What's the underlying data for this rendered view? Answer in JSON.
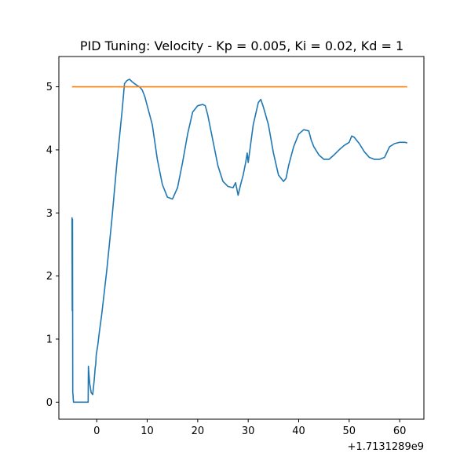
{
  "chart_data": {
    "type": "line",
    "title": "PID Tuning: Velocity - Kp = 0.005, Ki = 0.02, Kd = 1",
    "xlabel": "",
    "ylabel": "",
    "x_offset_label": "+1.7131289e9",
    "xlim": [
      -7.5,
      64.8
    ],
    "ylim": [
      -0.27,
      5.48
    ],
    "xticks": [
      0,
      10,
      20,
      30,
      40,
      50,
      60
    ],
    "yticks": [
      0,
      1,
      2,
      3,
      4,
      5
    ],
    "grid": false,
    "legend": "none",
    "series": [
      {
        "color": "#1f77b4",
        "x": [
          -4.9,
          -4.85,
          -4.8,
          -4.75,
          -4.7,
          -4.65,
          -4.6,
          -4.5,
          -4.2,
          -3.5,
          -2.5,
          -1.7,
          -1.65,
          -1.6,
          -1.4,
          -1.1,
          -0.8,
          -0.5,
          -0.3,
          -0.2,
          -0.1,
          0.0,
          0.2,
          0.5,
          1.0,
          2.0,
          3.0,
          4.0,
          5.0,
          5.5,
          6.0,
          6.5,
          7.0,
          7.5,
          8.0,
          8.5,
          9.0,
          9.5,
          10.0,
          10.5,
          11.0,
          12.0,
          13.0,
          14.0,
          15.0,
          16.0,
          17.0,
          18.0,
          19.0,
          20.0,
          21.0,
          21.5,
          22.0,
          23.0,
          24.0,
          25.0,
          26.0,
          27.0,
          27.5,
          28.0,
          28.2,
          28.5,
          29.0,
          29.5,
          29.8,
          30.0,
          30.5,
          31.0,
          32.0,
          32.5,
          33.0,
          34.0,
          35.0,
          36.0,
          37.0,
          37.5,
          38.0,
          38.5,
          39.0,
          40.0,
          41.0,
          42.0,
          42.5,
          43.0,
          44.0,
          45.0,
          46.0,
          47.0,
          48.0,
          49.0,
          50.0,
          50.5,
          51.0,
          52.0,
          53.0,
          54.0,
          55.0,
          56.0,
          57.0,
          58.0,
          59.0,
          60.0,
          61.0,
          61.5
        ],
        "y": [
          2.93,
          1.45,
          2.9,
          0.15,
          0.12,
          0.05,
          0.0,
          0.0,
          0.0,
          0.0,
          0.0,
          0.0,
          0.57,
          0.5,
          0.3,
          0.15,
          0.12,
          0.35,
          0.55,
          0.6,
          0.75,
          0.8,
          0.9,
          1.1,
          1.4,
          2.1,
          2.9,
          3.8,
          4.6,
          5.05,
          5.1,
          5.12,
          5.08,
          5.05,
          5.02,
          5.0,
          4.95,
          4.85,
          4.7,
          4.55,
          4.4,
          3.85,
          3.45,
          3.25,
          3.22,
          3.4,
          3.8,
          4.25,
          4.6,
          4.7,
          4.72,
          4.7,
          4.55,
          4.15,
          3.75,
          3.5,
          3.42,
          3.4,
          3.48,
          3.28,
          3.35,
          3.45,
          3.6,
          3.8,
          3.95,
          3.8,
          4.1,
          4.4,
          4.75,
          4.8,
          4.68,
          4.4,
          3.95,
          3.6,
          3.5,
          3.55,
          3.75,
          3.9,
          4.05,
          4.25,
          4.32,
          4.3,
          4.15,
          4.05,
          3.92,
          3.85,
          3.85,
          3.92,
          4.0,
          4.07,
          4.12,
          4.22,
          4.2,
          4.1,
          3.97,
          3.88,
          3.85,
          3.85,
          3.88,
          4.05,
          4.1,
          4.12,
          4.12,
          4.11
        ]
      },
      {
        "color": "#ff7f0e",
        "x": [
          -4.9,
          61.5
        ],
        "y": [
          5.0,
          5.0
        ]
      }
    ]
  }
}
